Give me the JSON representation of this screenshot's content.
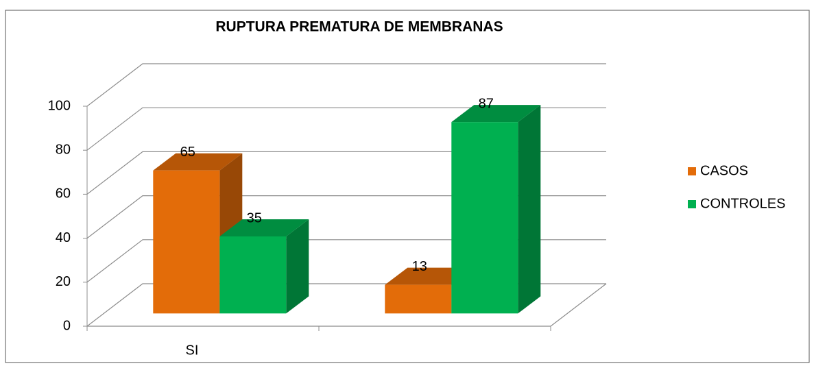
{
  "chart_data": {
    "type": "bar3d",
    "title": "RUPTURA PREMATURA DE MEMBRANAS",
    "categories": [
      "SI",
      null
    ],
    "series": [
      {
        "name": "CASOS",
        "color": "#e36c09",
        "values": [
          65,
          13
        ]
      },
      {
        "name": "CONTROLES",
        "color": "#00b050",
        "values": [
          35,
          87
        ]
      }
    ],
    "ylim": [
      0,
      100
    ],
    "yticks": [
      0,
      20,
      40,
      60,
      80,
      100
    ],
    "grid": true,
    "legend": "right"
  }
}
